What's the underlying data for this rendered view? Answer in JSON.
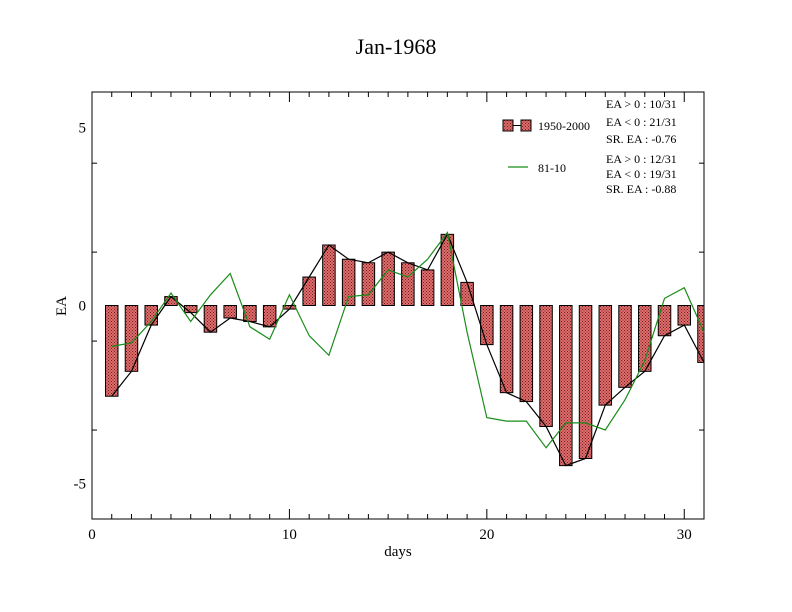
{
  "chart_data": {
    "type": "bar",
    "title": "Jan-1968",
    "xlabel": "days",
    "ylabel": "EA",
    "xlim": [
      0,
      31
    ],
    "ylim": [
      -6,
      6
    ],
    "x_ticks": [
      {
        "value": 0,
        "label": "0"
      },
      {
        "value": 10,
        "label": "10"
      },
      {
        "value": 20,
        "label": "20"
      },
      {
        "value": 30,
        "label": "30"
      }
    ],
    "y_ticks": [
      {
        "value": 5,
        "label": "5"
      },
      {
        "value": 0,
        "label": "0"
      },
      {
        "value": -5,
        "label": "-5"
      }
    ],
    "x": [
      1,
      2,
      3,
      4,
      5,
      6,
      7,
      8,
      9,
      10,
      11,
      12,
      13,
      14,
      15,
      16,
      17,
      18,
      19,
      20,
      21,
      22,
      23,
      24,
      25,
      26,
      27,
      28,
      29,
      30,
      31
    ],
    "series": [
      {
        "name": "1950-2000",
        "kind": "bar+line",
        "fill_color": "#e06c6c",
        "line_color": "#000000",
        "values": [
          -2.55,
          -1.85,
          -0.55,
          0.25,
          -0.2,
          -0.75,
          -0.35,
          -0.45,
          -0.6,
          -0.1,
          0.8,
          1.7,
          1.3,
          1.2,
          1.5,
          1.2,
          1.0,
          2.0,
          0.65,
          -1.1,
          -2.45,
          -2.7,
          -3.4,
          -4.5,
          -4.3,
          -2.8,
          -2.3,
          -1.85,
          -0.85,
          -0.55,
          -1.6
        ]
      },
      {
        "name": "81-10",
        "kind": "line",
        "line_color": "#1a8c1a",
        "values": [
          -1.15,
          -1.05,
          -0.45,
          0.35,
          -0.45,
          0.3,
          0.9,
          -0.6,
          -0.95,
          0.3,
          -0.85,
          -1.4,
          0.25,
          0.3,
          1.0,
          0.8,
          1.3,
          2.05,
          -0.75,
          -3.15,
          -3.25,
          -3.25,
          -4.0,
          -3.3,
          -3.3,
          -3.5,
          -2.65,
          -1.55,
          0.2,
          0.5,
          -0.75
        ]
      }
    ],
    "legend": [
      {
        "label": "1950-2000",
        "stats": [
          "EA > 0 : 10/31",
          "EA < 0 : 21/31",
          "SR. EA : -0.76"
        ]
      },
      {
        "label": "81-10",
        "stats": [
          "EA > 0 : 12/31",
          "EA < 0 : 19/31",
          "SR. EA : -0.88"
        ]
      }
    ],
    "legend_position": "top-right"
  }
}
